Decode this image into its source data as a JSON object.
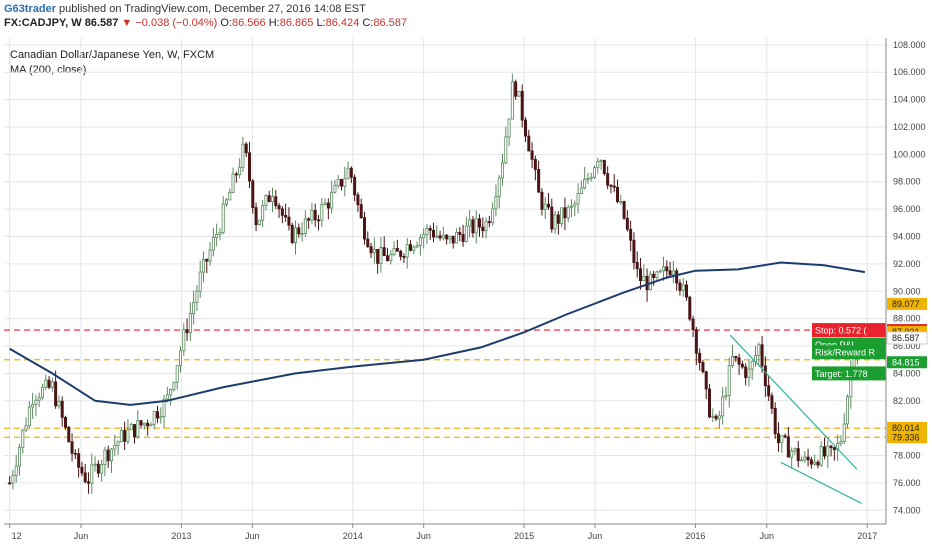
{
  "header": {
    "author": "G63trader",
    "published": "published on TradingView.com, December 27, 2016 14:08 EST",
    "symbol": "FX:CADJPY, W",
    "last": "86.587",
    "change": "−0.038 (−0.04%)",
    "open_label": "O:",
    "open": "86.566",
    "high_label": "H:",
    "high": "86.865",
    "low_label": "L:",
    "low": "86.424",
    "close_label": "C:",
    "close": "86.587"
  },
  "legend": {
    "title": "Canadian Dollar/Japanese Yen, W, FXCM",
    "indicator": "MA (200, close)"
  },
  "colors": {
    "up": "#5b8a5e",
    "down": "#4a1515",
    "ma": "#1d3c6e",
    "level": "#f0b400",
    "trend": "#2bb39a",
    "stop": "#e8232e",
    "target": "#1a9e2f",
    "price": "#3a3a3a"
  },
  "chart_data": {
    "type": "candlestick",
    "ylim": [
      73,
      108.5
    ],
    "y_ticks": [
      74,
      76,
      78,
      80,
      82,
      84,
      86,
      88,
      90,
      92,
      94,
      96,
      98,
      100,
      102,
      104,
      106,
      108
    ],
    "y_tick_labels": [
      "74.000",
      "76.000",
      "78.000",
      "80.000",
      "82.000",
      "84.000",
      "86.000",
      "88.000",
      "90.000",
      "92.000",
      "94.000",
      "96.000",
      "98.000",
      "100.000",
      "102.000",
      "104.000",
      "106.000",
      "108.000"
    ],
    "x_labels": [
      "12",
      "Jun",
      "2013",
      "Jun",
      "2014",
      "Jun",
      "2015",
      "Jun",
      "2016",
      "Jun",
      "2017"
    ],
    "x_label_dates": [
      "2012-01-01",
      "2012-06-01",
      "2013-01-01",
      "2013-06-01",
      "2014-01-01",
      "2014-06-01",
      "2015-01-01",
      "2015-06-01",
      "2016-01-01",
      "2016-06-01",
      "2017-01-01"
    ],
    "price_path": [
      [
        "2012-01-01",
        76.0
      ],
      [
        "2012-02-20",
        82.5
      ],
      [
        "2012-04-01",
        83.0
      ],
      [
        "2012-05-20",
        77.5
      ],
      [
        "2012-06-15",
        76.2
      ],
      [
        "2012-07-20",
        78.0
      ],
      [
        "2012-09-01",
        79.5
      ],
      [
        "2012-10-20",
        80.5
      ],
      [
        "2012-12-01",
        82.0
      ],
      [
        "2013-01-01",
        86.0
      ],
      [
        "2013-02-10",
        91.0
      ],
      [
        "2013-03-20",
        94.5
      ],
      [
        "2013-05-15",
        100.5
      ],
      [
        "2013-06-10",
        95.0
      ],
      [
        "2013-07-15",
        97.5
      ],
      [
        "2013-08-20",
        94.0
      ],
      [
        "2013-10-15",
        95.5
      ],
      [
        "2013-11-20",
        97.0
      ],
      [
        "2013-12-25",
        99.0
      ],
      [
        "2014-01-20",
        95.0
      ],
      [
        "2014-02-20",
        92.5
      ],
      [
        "2014-04-01",
        92.5
      ],
      [
        "2014-05-01",
        93.5
      ],
      [
        "2014-06-15",
        94.5
      ],
      [
        "2014-07-20",
        93.5
      ],
      [
        "2014-09-01",
        94.5
      ],
      [
        "2014-10-15",
        95.0
      ],
      [
        "2014-11-15",
        99.5
      ],
      [
        "2014-12-10",
        105.5
      ],
      [
        "2015-01-10",
        101.0
      ],
      [
        "2015-02-01",
        97.0
      ],
      [
        "2015-03-01",
        95.0
      ],
      [
        "2015-04-15",
        96.0
      ],
      [
        "2015-05-20",
        98.5
      ],
      [
        "2015-06-10",
        100.2
      ],
      [
        "2015-07-01",
        98.0
      ],
      [
        "2015-08-01",
        95.5
      ],
      [
        "2015-09-01",
        91.0
      ],
      [
        "2015-10-01",
        90.5
      ],
      [
        "2015-11-15",
        92.0
      ],
      [
        "2015-12-20",
        88.5
      ],
      [
        "2016-01-10",
        85.0
      ],
      [
        "2016-01-25",
        82.0
      ],
      [
        "2016-02-15",
        80.0
      ],
      [
        "2016-03-20",
        85.0
      ],
      [
        "2016-04-05",
        84.5
      ],
      [
        "2016-04-25",
        84.0
      ],
      [
        "2016-05-15",
        86.0
      ],
      [
        "2016-06-05",
        82.5
      ],
      [
        "2016-06-25",
        79.0
      ],
      [
        "2016-07-20",
        78.5
      ],
      [
        "2016-08-20",
        77.5
      ],
      [
        "2016-09-20",
        78.0
      ],
      [
        "2016-10-20",
        78.0
      ],
      [
        "2016-11-05",
        79.0
      ],
      [
        "2016-11-20",
        82.5
      ],
      [
        "2016-12-05",
        86.0
      ],
      [
        "2016-12-20",
        86.587
      ]
    ],
    "ma200": [
      [
        "2012-01-01",
        85.8
      ],
      [
        "2012-04-01",
        84.0
      ],
      [
        "2012-07-01",
        82.0
      ],
      [
        "2012-09-15",
        81.7
      ],
      [
        "2012-12-01",
        82.0
      ],
      [
        "2013-04-01",
        83.0
      ],
      [
        "2013-09-01",
        84.0
      ],
      [
        "2014-01-01",
        84.5
      ],
      [
        "2014-06-01",
        85.0
      ],
      [
        "2014-10-01",
        85.9
      ],
      [
        "2015-01-01",
        87.0
      ],
      [
        "2015-04-01",
        88.3
      ],
      [
        "2015-08-01",
        89.9
      ],
      [
        "2015-11-01",
        91.0
      ],
      [
        "2016-01-01",
        91.5
      ],
      [
        "2016-04-01",
        91.6
      ],
      [
        "2016-07-01",
        92.1
      ],
      [
        "2016-10-01",
        91.9
      ],
      [
        "2016-12-27",
        91.4
      ]
    ],
    "levels": [
      {
        "value": 87.165,
        "label": "87.165",
        "color": "#e8232e"
      },
      {
        "value": 85.0,
        "label": "",
        "color": "#f0b400"
      },
      {
        "value": 80.0,
        "label": "",
        "color": "#f0b400"
      },
      {
        "value": 79.336,
        "label": "",
        "color": "#f0b400"
      }
    ],
    "trendlines": [
      {
        "from": [
          "2016-03-15",
          86.8
        ],
        "to": [
          "2016-12-10",
          77.0
        ]
      },
      {
        "from": [
          "2016-07-01",
          77.5
        ],
        "to": [
          "2016-12-20",
          74.5
        ]
      }
    ],
    "axis_tags": [
      {
        "label": "89.077",
        "value": 89.077,
        "bg": "#f0b400",
        "fg": "#222"
      },
      {
        "label": "87.165",
        "value": 87.165,
        "bg": "#e8232e",
        "fg": "#fff"
      },
      {
        "label": "87.021",
        "value": 87.021,
        "bg": "#f0b400",
        "fg": "#222"
      },
      {
        "label": "86.593",
        "value": 86.593,
        "bg": "#3a3a3a",
        "fg": "#fff"
      },
      {
        "label": "86.587",
        "value": 86.587,
        "bg": "#ffffff",
        "fg": "#222"
      },
      {
        "label": "84.815",
        "value": 84.815,
        "bg": "#1a9e2f",
        "fg": "#fff"
      },
      {
        "label": "80.014",
        "value": 80.014,
        "bg": "#f0b400",
        "fg": "#222"
      },
      {
        "label": "79.336",
        "value": 79.336,
        "bg": "#f0b400",
        "fg": "#222"
      }
    ],
    "position_labels": [
      {
        "text": "Stop: 0.572 (",
        "value": 87.165,
        "bg": "#e8232e",
        "fg": "#fff"
      },
      {
        "text": "Open P&L",
        "value": 86.1,
        "bg": "#1a9e2f",
        "fg": "#fff"
      },
      {
        "text": "Risk/Reward R",
        "value": 85.55,
        "bg": "#1a9e2f",
        "fg": "#fff"
      },
      {
        "text": "Target: 1.778",
        "value": 84.0,
        "bg": "#1a9e2f",
        "fg": "#fff"
      }
    ]
  }
}
